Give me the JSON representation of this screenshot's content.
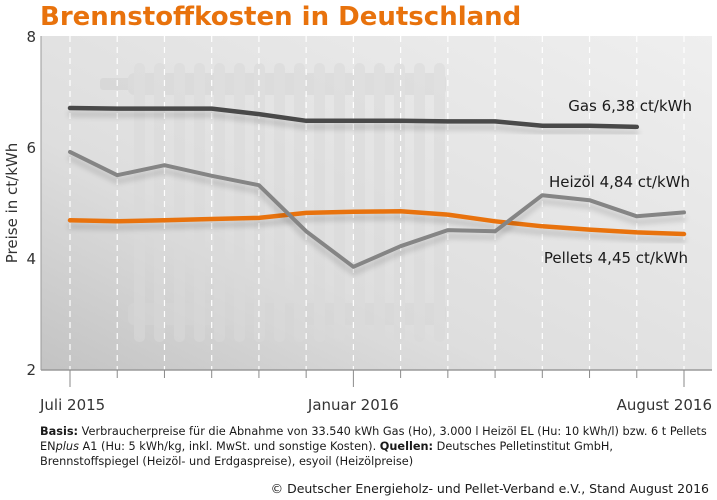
{
  "chart_data": {
    "type": "line",
    "title": "Brennstoffkosten in Deutschland",
    "xlabel": "",
    "ylabel": "Preise in ct/kWh",
    "ylim": [
      2,
      8
    ],
    "yticks": [
      "2",
      "4",
      "6",
      "8"
    ],
    "ytick_values": [
      2,
      4,
      6,
      8
    ],
    "x": [
      "Jul 2015",
      "Aug 2015",
      "Sep 2015",
      "Okt 2015",
      "Nov 2015",
      "Dez 2015",
      "Jan 2016",
      "Feb 2016",
      "Mär 2016",
      "Apr 2016",
      "Mai 2016",
      "Jun 2016",
      "Jul 2016",
      "Aug 2016"
    ],
    "xtick_labels": [
      {
        "index": 0,
        "text": "Juli 2015"
      },
      {
        "index": 6,
        "text": "Januar 2016"
      },
      {
        "index": 13,
        "text": "August 2016"
      }
    ],
    "grid": "vertical dashed per month",
    "series": [
      {
        "name": "Gas",
        "label": "Gas 6,38 ct/kWh",
        "color": "#4a4a4a",
        "values": [
          6.72,
          6.71,
          6.71,
          6.71,
          6.61,
          6.49,
          6.49,
          6.49,
          6.48,
          6.48,
          6.4,
          6.4,
          6.38,
          null
        ]
      },
      {
        "name": "Heizöl",
        "label": "Heizöl 4,84 ct/kWh",
        "color": "#858585",
        "values": [
          5.93,
          5.51,
          5.69,
          5.5,
          5.33,
          4.5,
          3.86,
          4.23,
          4.52,
          4.5,
          5.15,
          5.06,
          4.77,
          4.84
        ]
      },
      {
        "name": "Pellets",
        "label": "Pellets 4,45 ct/kWh",
        "color": "#e8720c",
        "values": [
          4.7,
          4.68,
          4.7,
          4.72,
          4.74,
          4.83,
          4.85,
          4.86,
          4.8,
          4.68,
          4.59,
          4.53,
          4.48,
          4.45
        ]
      }
    ]
  },
  "footnote": {
    "basis_label": "Basis:",
    "basis_text_1": " Verbraucherpreise für die Abnahme von 33.540 kWh Gas (Ho), 3.000 l Heizöl EL (Hu: 10 kWh/l) bzw. 6 t Pellets EN",
    "basis_italic": "plus",
    "basis_text_2": " A1 (Hu: 5 kWh/kg, inkl. MwSt. und sonstige Kosten). ",
    "sources_label": "Quellen:",
    "sources_text": " Deutsches Pelletinstitut GmbH, Brennstoffspiegel (Heizöl- und Erdgaspreise), esyoil (Heizölpreise)"
  },
  "credit": "© Deutscher Energieholz- und Pellet-Verband e.V., Stand August 2016"
}
